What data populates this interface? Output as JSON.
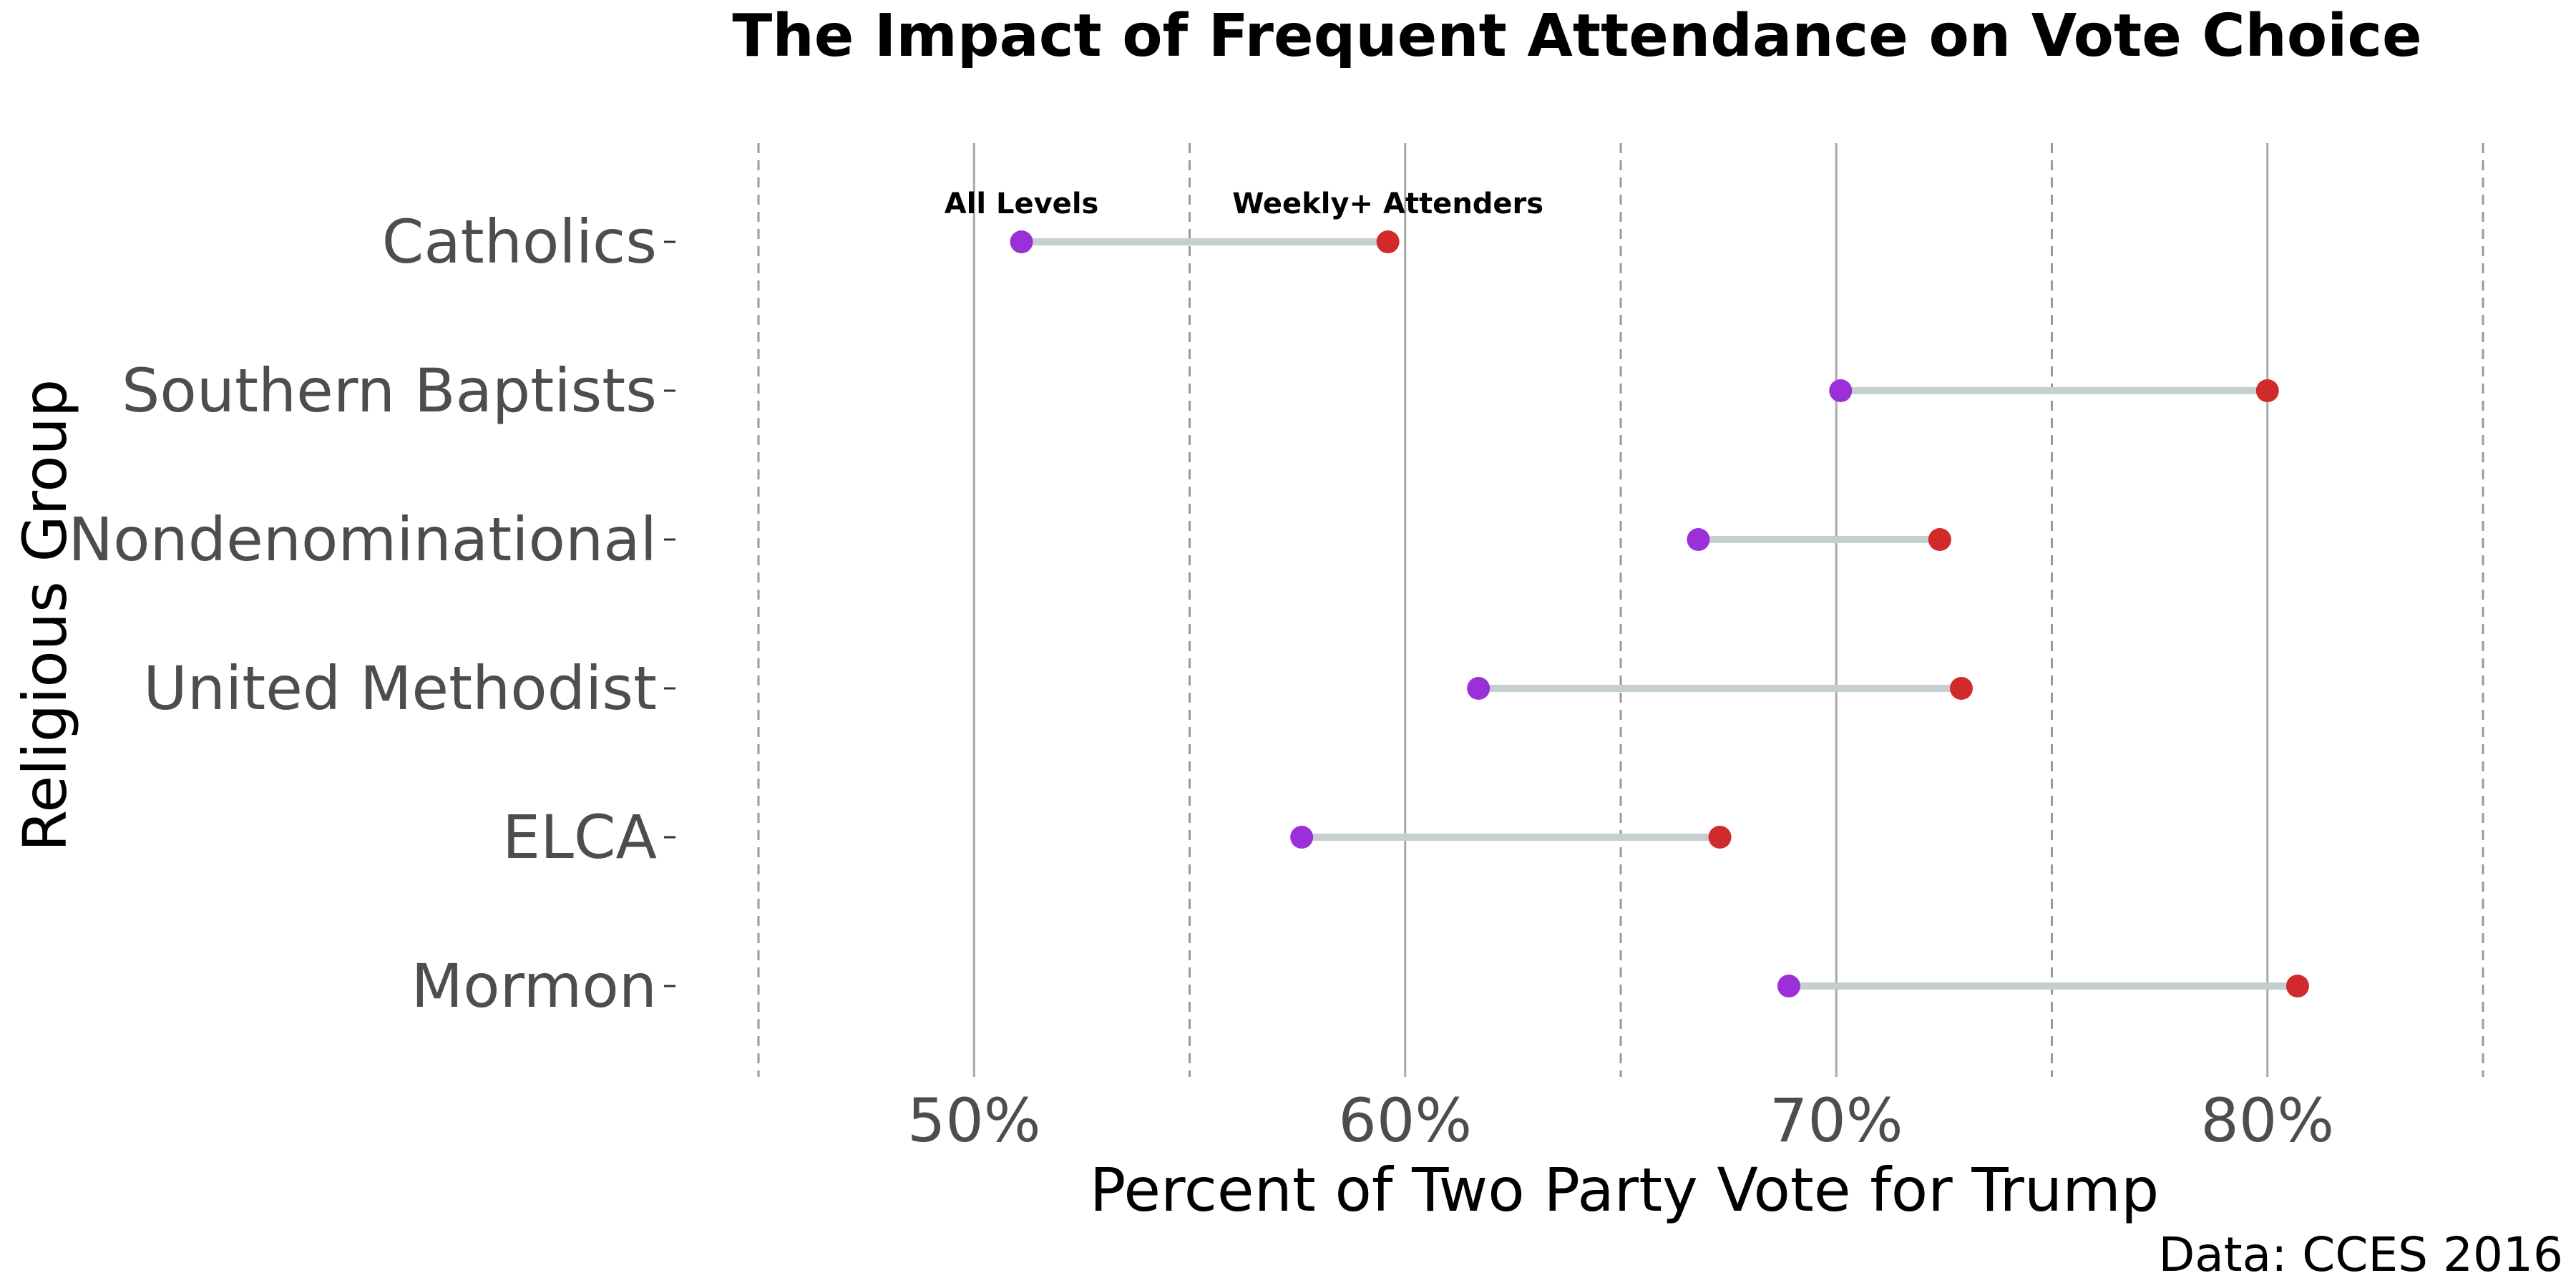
{
  "chart_data": {
    "type": "dumbbell",
    "title": "The Impact of Frequent Attendance on Vote Choice",
    "xlabel": "Percent of Two Party Vote for Trump",
    "ylabel": "Religious Group",
    "caption": "Data: CCES 2016",
    "xlim": [
      0.45,
      0.85
    ],
    "x_major_ticks": [
      0.5,
      0.6,
      0.7,
      0.8
    ],
    "x_tick_labels": [
      "50%",
      "60%",
      "70%",
      "80%"
    ],
    "x_minor_gridlines": [
      0.45,
      0.55,
      0.65,
      0.75,
      0.85
    ],
    "grid": true,
    "categories": [
      "Catholics",
      "Southern Baptists",
      "Nondenominational",
      "United Methodist",
      "ELCA",
      "Mormon"
    ],
    "series": [
      {
        "name": "All Levels",
        "color": "#9b30d9",
        "values": [
          0.511,
          0.701,
          0.668,
          0.617,
          0.576,
          0.689
        ]
      },
      {
        "name": "Weekly+ Attenders",
        "color": "#d12a2a",
        "values": [
          0.596,
          0.8,
          0.724,
          0.729,
          0.673,
          0.807
        ]
      }
    ],
    "connector_color": "#c5cfcf",
    "annotations": [
      {
        "text": "All Levels",
        "category": "Catholics",
        "x": 0.511
      },
      {
        "text": "Weekly+ Attenders",
        "category": "Catholics",
        "x": 0.596
      }
    ]
  }
}
